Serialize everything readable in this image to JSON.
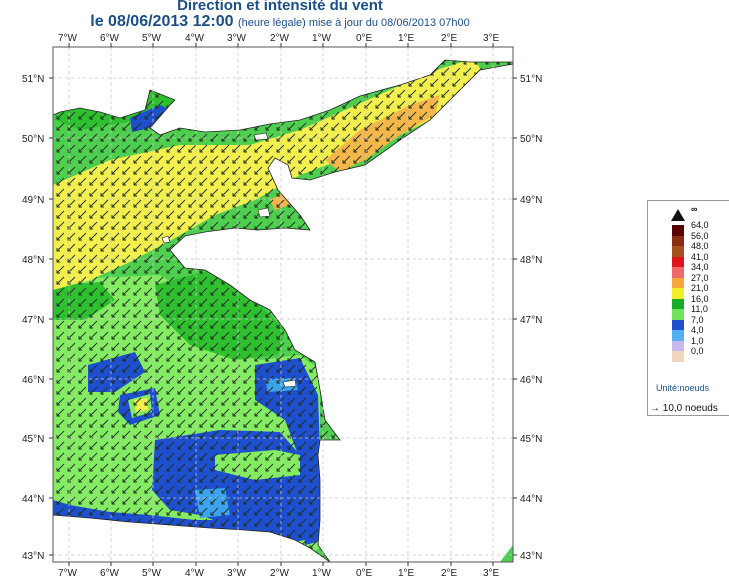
{
  "header": {
    "title": "Direction et intensité du vent",
    "date_line": "le 08/06/2013 12:00",
    "date_suffix": "(heure légale) mise à jour du 08/06/2013 07h00"
  },
  "map": {
    "lon_labels": [
      "7°W",
      "6°W",
      "5°W",
      "4°W",
      "3°W",
      "2°W",
      "1°W",
      "0°E",
      "1°E",
      "2°E",
      "3°E"
    ],
    "lat_labels": [
      "51°N",
      "50°N",
      "49°N",
      "48°N",
      "47°N",
      "46°N",
      "45°N",
      "44°N",
      "43°N"
    ],
    "lon_range": [
      -7.3,
      3.2
    ],
    "lat_range": [
      42.95,
      51.45
    ],
    "arrow_direction": "south-west (wind from north-east)",
    "colors": {
      "ocean": "#4fcf4f",
      "ocean_light": "#84ec62",
      "ocean_mid": "#2fc02f",
      "yellow": "#f2ef4e",
      "orange": "#f5b64a",
      "blue": "#1d4fcf",
      "cyan": "#3ba3ef",
      "land": "#ffffff",
      "grid": "#c8c8c8"
    }
  },
  "legend": {
    "top_symbol": "∞",
    "scale": [
      {
        "label": "64,0",
        "color": "#5a0000"
      },
      {
        "label": "56,0",
        "color": "#8a2c12"
      },
      {
        "label": "48,0",
        "color": "#a3521b"
      },
      {
        "label": "41,0",
        "color": "#e0141b"
      },
      {
        "label": "34,0",
        "color": "#f06868"
      },
      {
        "label": "27,0",
        "color": "#f5a63d"
      },
      {
        "label": "21,0",
        "color": "#f3ee2a"
      },
      {
        "label": "16,0",
        "color": "#1aaa2a"
      },
      {
        "label": "11,0",
        "color": "#72e25c"
      },
      {
        "label": "7,0",
        "color": "#1d4fcf"
      },
      {
        "label": "4,0",
        "color": "#52b0f0"
      },
      {
        "label": "1,0",
        "color": "#c9b8ee"
      },
      {
        "label": "0,0",
        "color": "#f1d6c0"
      }
    ],
    "unit": "Unité:noeuds",
    "arrow_ref": "→ 10,0 noeuds"
  }
}
